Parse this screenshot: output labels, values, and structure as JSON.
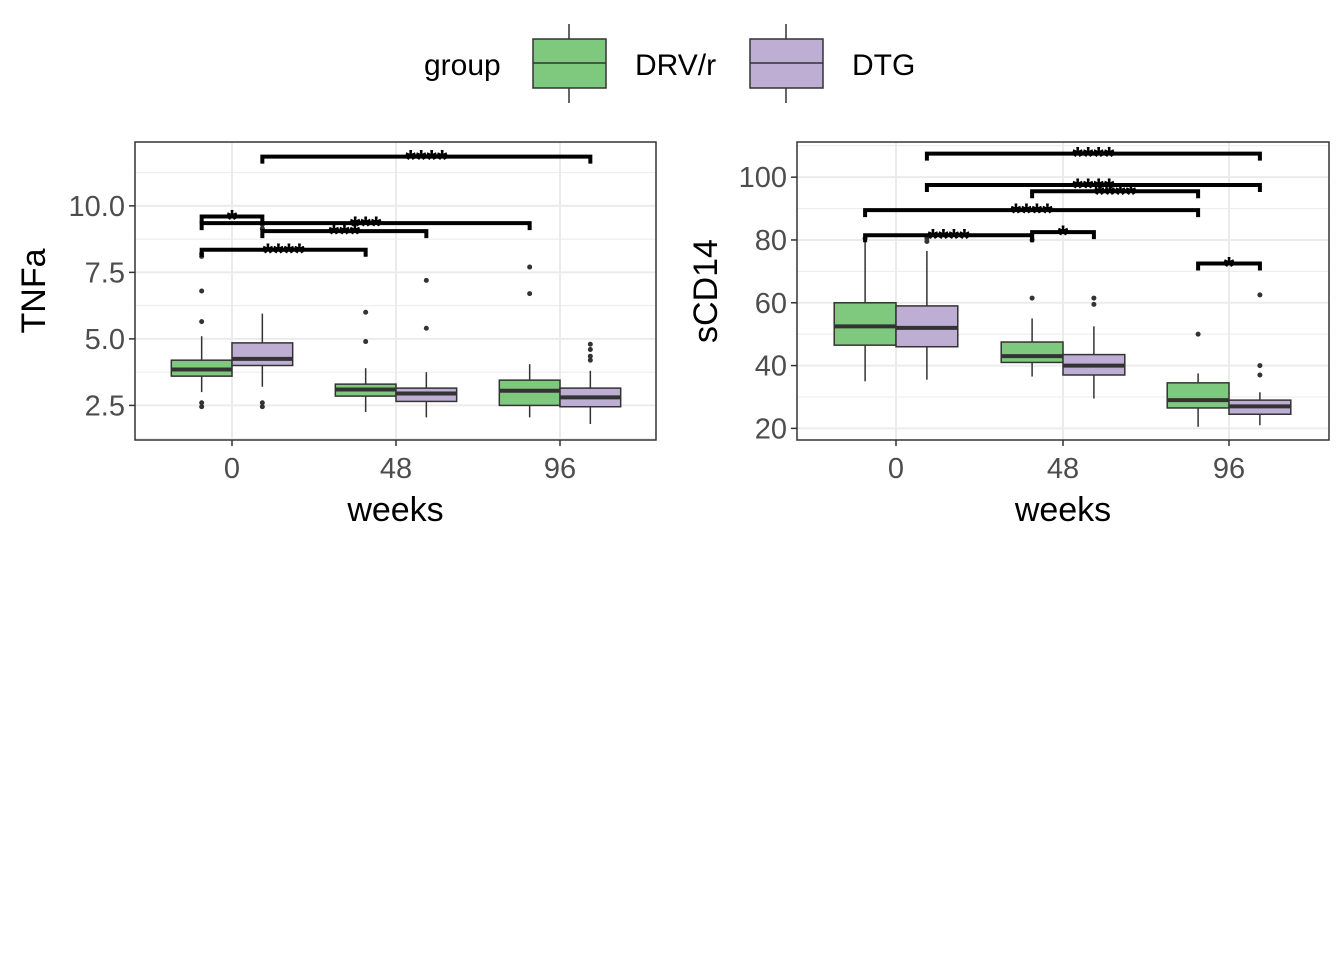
{
  "legend": {
    "title": "group",
    "items": [
      {
        "label": "DRV/r",
        "color": "#7fc97f"
      },
      {
        "label": "DTG",
        "color": "#beaed4"
      }
    ]
  },
  "chart_data": [
    {
      "type": "box",
      "xlabel": "weeks",
      "ylabel": "TNFa",
      "categories": [
        "0",
        "48",
        "96"
      ],
      "ylim": [
        1.2,
        12.4
      ],
      "yticks": [
        2.5,
        5.0,
        7.5,
        10.0
      ],
      "ytick_labels": [
        "2.5",
        "5.0",
        "7.5",
        "10.0"
      ],
      "grid": true,
      "series": [
        {
          "name": "DRV/r",
          "color": "#7fc97f",
          "boxes": [
            {
              "category": "0",
              "min": 3.0,
              "q1": 3.6,
              "median": 3.85,
              "q3": 4.2,
              "max": 5.1,
              "outliers": [
                2.45,
                2.6,
                5.65,
                6.8,
                8.1,
                8.2
              ]
            },
            {
              "category": "48",
              "min": 2.25,
              "q1": 2.85,
              "median": 3.1,
              "q3": 3.3,
              "max": 3.9,
              "outliers": [
                4.9,
                6.0
              ]
            },
            {
              "category": "96",
              "min": 2.05,
              "q1": 2.5,
              "median": 3.05,
              "q3": 3.45,
              "max": 4.05,
              "outliers": [
                6.7,
                7.7
              ]
            }
          ]
        },
        {
          "name": "DTG",
          "color": "#beaed4",
          "boxes": [
            {
              "category": "0",
              "min": 3.2,
              "q1": 4.0,
              "median": 4.25,
              "q3": 4.85,
              "max": 5.95,
              "outliers": [
                2.45,
                2.6,
                9.15,
                9.3
              ]
            },
            {
              "category": "48",
              "min": 2.05,
              "q1": 2.65,
              "median": 2.95,
              "q3": 3.15,
              "max": 3.75,
              "outliers": [
                5.4,
                7.2
              ]
            },
            {
              "category": "96",
              "min": 1.8,
              "q1": 2.45,
              "median": 2.8,
              "q3": 3.15,
              "max": 3.8,
              "outliers": [
                4.2,
                4.35,
                4.6,
                4.8
              ]
            }
          ]
        }
      ],
      "comparisons": [
        {
          "from": {
            "category": "0",
            "group": "DRV/r"
          },
          "to": {
            "category": "0",
            "group": "DTG"
          },
          "y": 9.6,
          "label": "*"
        },
        {
          "from": {
            "category": "0",
            "group": "DRV/r"
          },
          "to": {
            "category": "48",
            "group": "DRV/r"
          },
          "y": 8.35,
          "label": "****"
        },
        {
          "from": {
            "category": "0",
            "group": "DTG"
          },
          "to": {
            "category": "48",
            "group": "DTG"
          },
          "y": 9.05,
          "label": "***"
        },
        {
          "from": {
            "category": "0",
            "group": "DRV/r"
          },
          "to": {
            "category": "96",
            "group": "DRV/r"
          },
          "y": 9.35,
          "label": "***"
        },
        {
          "from": {
            "category": "0",
            "group": "DTG"
          },
          "to": {
            "category": "96",
            "group": "DTG"
          },
          "y": 11.85,
          "label": "****"
        }
      ]
    },
    {
      "type": "box",
      "xlabel": "weeks",
      "ylabel": "sCD14",
      "categories": [
        "0",
        "48",
        "96"
      ],
      "ylim": [
        16.3,
        111.2
      ],
      "yticks": [
        20,
        40,
        60,
        80,
        100
      ],
      "ytick_labels": [
        "20",
        "40",
        "60",
        "80",
        "100"
      ],
      "grid": true,
      "series": [
        {
          "name": "DRV/r",
          "color": "#7fc97f",
          "boxes": [
            {
              "category": "0",
              "min": 35,
              "q1": 46.5,
              "median": 52.5,
              "q3": 60,
              "max": 80,
              "outliers": [
                80.5
              ]
            },
            {
              "category": "48",
              "min": 36.5,
              "q1": 41,
              "median": 43,
              "q3": 47.5,
              "max": 55,
              "outliers": [
                61.5,
                80
              ]
            },
            {
              "category": "96",
              "min": 20.5,
              "q1": 26.5,
              "median": 29,
              "q3": 34.5,
              "max": 37.5,
              "outliers": [
                50
              ]
            }
          ]
        },
        {
          "name": "DTG",
          "color": "#beaed4",
          "boxes": [
            {
              "category": "0",
              "min": 35.5,
              "q1": 46,
              "median": 52,
              "q3": 59,
              "max": 76.5,
              "outliers": [
                79.5,
                80.5
              ]
            },
            {
              "category": "48",
              "min": 29.5,
              "q1": 37,
              "median": 40,
              "q3": 43.5,
              "max": 52.5,
              "outliers": [
                59.5,
                61.5
              ]
            },
            {
              "category": "96",
              "min": 21,
              "q1": 24.5,
              "median": 27,
              "q3": 29,
              "max": 31.5,
              "outliers": [
                37,
                40,
                62.5
              ]
            }
          ]
        }
      ],
      "comparisons": [
        {
          "from": {
            "category": "0",
            "group": "DRV/r"
          },
          "to": {
            "category": "48",
            "group": "DRV/r"
          },
          "y": 81.5,
          "label": "****"
        },
        {
          "from": {
            "category": "48",
            "group": "DRV/r"
          },
          "to": {
            "category": "48",
            "group": "DTG"
          },
          "y": 82.5,
          "label": "*"
        },
        {
          "from": {
            "category": "0",
            "group": "DRV/r"
          },
          "to": {
            "category": "96",
            "group": "DRV/r"
          },
          "y": 89.5,
          "label": "****"
        },
        {
          "from": {
            "category": "0",
            "group": "DTG"
          },
          "to": {
            "category": "96",
            "group": "DTG"
          },
          "y": 97.5,
          "label": "****"
        },
        {
          "from": {
            "category": "48",
            "group": "DRV/r"
          },
          "to": {
            "category": "96",
            "group": "DRV/r"
          },
          "y": 95.5,
          "label": "****"
        },
        {
          "from": {
            "category": "96",
            "group": "DRV/r"
          },
          "to": {
            "category": "96",
            "group": "DTG"
          },
          "y": 72.5,
          "label": "*"
        },
        {
          "from": {
            "category": "0",
            "group": "DTG"
          },
          "to": {
            "category": "96",
            "group": "DTG"
          },
          "y": 107.5,
          "label": "****"
        }
      ]
    }
  ]
}
